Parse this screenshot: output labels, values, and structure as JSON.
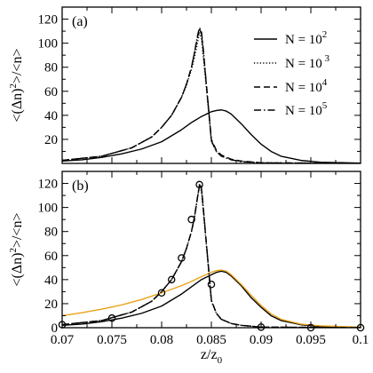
{
  "chart_data": [
    {
      "type": "line",
      "panel_label": "(a)",
      "ylabel_html": "<(Δn)²>/<n>",
      "ylabel_parts": [
        "<(Δn)",
        "2",
        ">/<n>"
      ],
      "xlabel": "",
      "xlim": [
        0.07,
        0.1
      ],
      "ylim": [
        0,
        130
      ],
      "yticks": [
        20,
        40,
        60,
        80,
        100,
        120
      ],
      "xticks": [
        0.07,
        0.075,
        0.08,
        0.085,
        0.09,
        0.095,
        0.1
      ],
      "show_x_tick_labels": false,
      "grid": false,
      "legend": {
        "placement": "top-right",
        "entries": [
          {
            "base": "N = 10",
            "exp": "2",
            "style": "solid"
          },
          {
            "base": "N = 10",
            "exp": " 3",
            "style": "dotted"
          },
          {
            "base": "N = 10",
            "exp": "4",
            "style": "dashed"
          },
          {
            "base": "N = 10",
            "exp": "5",
            "style": "dashdot"
          }
        ]
      },
      "series": [
        {
          "style": "solid",
          "color": "#000000",
          "x": [
            0.07,
            0.072,
            0.074,
            0.076,
            0.078,
            0.08,
            0.082,
            0.083,
            0.084,
            0.085,
            0.0855,
            0.086,
            0.0865,
            0.087,
            0.088,
            0.089,
            0.09,
            0.091,
            0.092,
            0.094,
            0.096,
            0.1
          ],
          "y": [
            2,
            3,
            5,
            8,
            12,
            18,
            28,
            34,
            39,
            43,
            44,
            44.5,
            43.5,
            41,
            33,
            24,
            16,
            10,
            6,
            2.5,
            1,
            0.2
          ]
        },
        {
          "style": "dotted",
          "color": "#000000",
          "x": [
            0.07,
            0.074,
            0.077,
            0.079,
            0.08,
            0.081,
            0.082,
            0.0825,
            0.083,
            0.0833,
            0.0836,
            0.0838,
            0.084,
            0.0842,
            0.0845,
            0.0848,
            0.085,
            0.0855,
            0.086,
            0.087,
            0.088,
            0.09,
            0.1
          ],
          "y": [
            2.5,
            6,
            13,
            22,
            30,
            40,
            55,
            65,
            78,
            88,
            100,
            109,
            104,
            88,
            62,
            36,
            18,
            10,
            6,
            3,
            1.5,
            0.5,
            0
          ]
        },
        {
          "style": "dashed",
          "color": "#000000",
          "x": [
            0.07,
            0.074,
            0.077,
            0.079,
            0.08,
            0.081,
            0.082,
            0.0825,
            0.083,
            0.0833,
            0.0836,
            0.0838,
            0.084,
            0.0842,
            0.0845,
            0.0848,
            0.085,
            0.0855,
            0.086,
            0.087,
            0.088,
            0.09,
            0.1
          ],
          "y": [
            2.5,
            6,
            13,
            22,
            30,
            40,
            55,
            66,
            80,
            92,
            105,
            112,
            108,
            92,
            65,
            38,
            20,
            11,
            7,
            3.5,
            2,
            0.5,
            0
          ]
        },
        {
          "style": "dashdot",
          "color": "#000000",
          "x": [
            0.07,
            0.074,
            0.077,
            0.079,
            0.08,
            0.081,
            0.082,
            0.0825,
            0.083,
            0.0833,
            0.0836,
            0.0838,
            0.084,
            0.0842,
            0.0845,
            0.0848,
            0.085,
            0.0855,
            0.086,
            0.087,
            0.088,
            0.09,
            0.1
          ],
          "y": [
            2.5,
            6,
            13,
            22,
            30,
            40,
            55,
            66,
            80,
            92,
            106,
            113,
            110,
            94,
            66,
            38,
            19,
            10,
            6,
            3,
            1.5,
            0.5,
            0
          ]
        }
      ]
    },
    {
      "type": "line",
      "panel_label": "(b)",
      "ylabel_parts": [
        "<(Δn)",
        "2",
        ">/<n>"
      ],
      "xlabel_parts": [
        "z/z",
        "0"
      ],
      "xlim": [
        0.07,
        0.1
      ],
      "ylim": [
        0,
        130
      ],
      "yticks": [
        0,
        20,
        40,
        60,
        80,
        100,
        120
      ],
      "xticks": [
        0.07,
        0.075,
        0.08,
        0.085,
        0.09,
        0.095,
        0.1
      ],
      "xtick_labels": [
        "0.07",
        "0.075",
        "0.08",
        "0.085",
        "0.09",
        "0.095",
        "0.1"
      ],
      "ytick_labels": [
        "0",
        "20",
        "40",
        "60",
        "80",
        "100",
        "120"
      ],
      "grid": false,
      "series": [
        {
          "style": "solid",
          "color": "#000000",
          "x": [
            0.07,
            0.072,
            0.074,
            0.076,
            0.078,
            0.08,
            0.082,
            0.083,
            0.084,
            0.085,
            0.0855,
            0.086,
            0.0865,
            0.087,
            0.088,
            0.089,
            0.09,
            0.091,
            0.092,
            0.094,
            0.096,
            0.1
          ],
          "y": [
            2,
            3,
            5,
            8,
            12,
            18,
            28,
            34,
            40,
            44,
            46,
            47,
            46,
            43,
            35,
            25,
            17,
            10,
            6,
            2.5,
            1,
            0.2
          ]
        },
        {
          "style": "solid",
          "color": "#e8a317",
          "x": [
            0.07,
            0.072,
            0.074,
            0.076,
            0.078,
            0.08,
            0.082,
            0.083,
            0.084,
            0.085,
            0.0855,
            0.086,
            0.0865,
            0.087,
            0.088,
            0.089,
            0.09,
            0.091,
            0.092,
            0.094,
            0.096,
            0.1
          ],
          "y": [
            10,
            12.5,
            15.5,
            19,
            23.5,
            29,
            35,
            38.5,
            42.5,
            46,
            47.5,
            48,
            47,
            44,
            36,
            27,
            18.5,
            11.5,
            7,
            3,
            1.5,
            0.5
          ]
        },
        {
          "style": "dotted",
          "color": "#000000",
          "x": [
            0.07,
            0.074,
            0.077,
            0.079,
            0.08,
            0.081,
            0.082,
            0.0825,
            0.083,
            0.0833,
            0.0836,
            0.0838,
            0.084,
            0.0842,
            0.0845,
            0.0848,
            0.085,
            0.0855,
            0.086,
            0.087,
            0.088,
            0.09,
            0.1
          ],
          "y": [
            2.5,
            6,
            13,
            22,
            30,
            40,
            55,
            66,
            80,
            92,
            108,
            117,
            114,
            96,
            68,
            40,
            22,
            12,
            7,
            3.5,
            2,
            0.5,
            0
          ]
        },
        {
          "style": "dashed",
          "color": "#000000",
          "x": [
            0.07,
            0.074,
            0.077,
            0.079,
            0.08,
            0.081,
            0.082,
            0.0825,
            0.083,
            0.0833,
            0.0836,
            0.0838,
            0.084,
            0.0842,
            0.0845,
            0.0848,
            0.085,
            0.0855,
            0.086,
            0.087,
            0.088,
            0.09,
            0.1
          ],
          "y": [
            2.5,
            6,
            13,
            22,
            30,
            40,
            55,
            66,
            80,
            92,
            108,
            118,
            116,
            98,
            70,
            42,
            23,
            12,
            7,
            3.5,
            2,
            0.5,
            0
          ]
        },
        {
          "style": "dashdot",
          "color": "#000000",
          "x": [
            0.07,
            0.074,
            0.077,
            0.079,
            0.08,
            0.081,
            0.082,
            0.0825,
            0.083,
            0.0833,
            0.0836,
            0.0838,
            0.084,
            0.0842,
            0.0845,
            0.0848,
            0.085,
            0.0855,
            0.086,
            0.087,
            0.088,
            0.09,
            0.1
          ],
          "y": [
            2.5,
            6,
            13,
            22,
            30,
            40,
            55,
            66,
            80,
            92,
            108,
            119,
            117,
            99,
            70,
            42,
            23,
            12,
            7,
            3.5,
            2,
            0.5,
            0
          ]
        },
        {
          "style": "markers",
          "marker": "circle",
          "color": "#000000",
          "x": [
            0.07,
            0.075,
            0.08,
            0.081,
            0.082,
            0.083,
            0.0838,
            0.085,
            0.09,
            0.095,
            0.1
          ],
          "y": [
            2.5,
            8,
            29,
            40,
            58,
            90,
            119,
            36,
            0.5,
            0,
            0
          ]
        }
      ]
    }
  ]
}
